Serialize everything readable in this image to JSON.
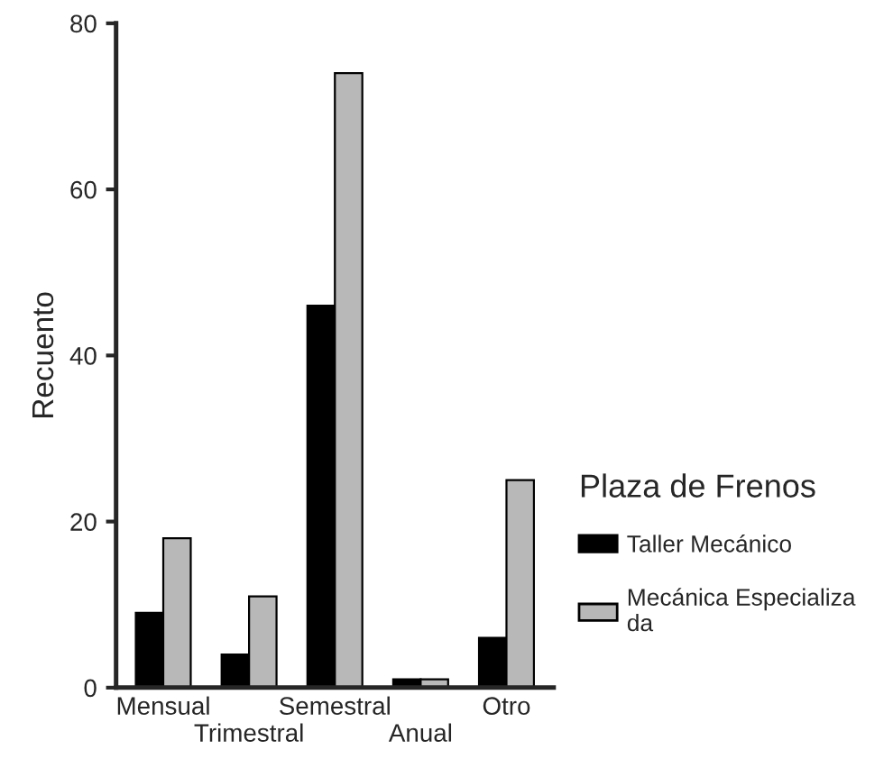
{
  "chart_data": {
    "type": "bar",
    "ylabel": "Recuento",
    "legend_title": "Plaza de Frenos",
    "legend": "right",
    "categories": [
      "Mensual",
      "Trimestral",
      "Semestral",
      "Anual",
      "Otro"
    ],
    "series": [
      {
        "name": "Taller Mecánico",
        "color": "#000000",
        "values": [
          9,
          4,
          46,
          1,
          6
        ]
      },
      {
        "name": "Mecánica Especializa\nda",
        "color": "#b8b8b8",
        "values": [
          18,
          11,
          74,
          1,
          25
        ]
      }
    ],
    "ylim": [
      0,
      80
    ],
    "yticks": [
      0,
      20,
      40,
      60,
      80
    ],
    "grid": false
  }
}
